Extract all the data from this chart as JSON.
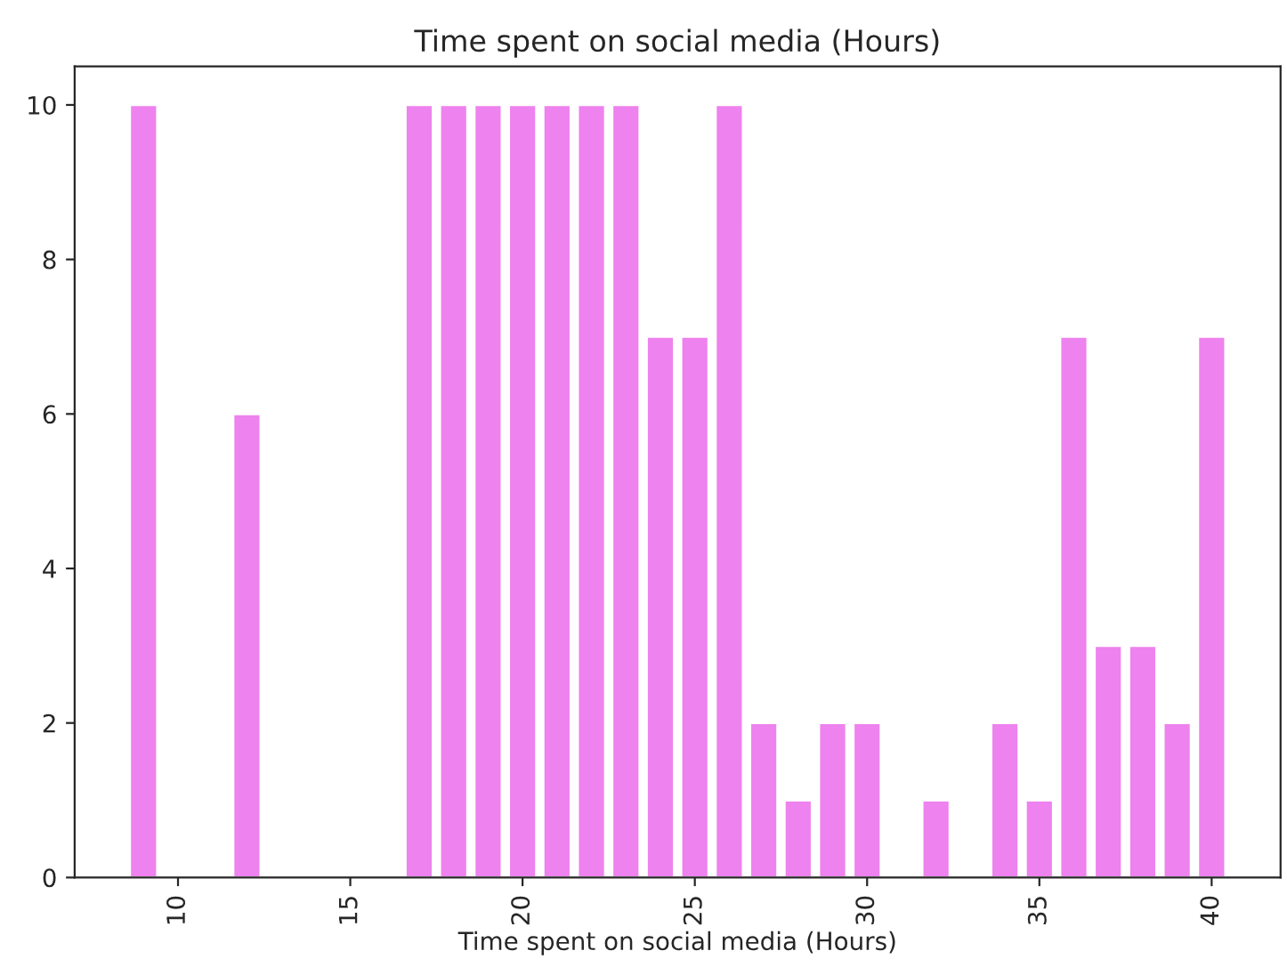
{
  "chart_data": {
    "type": "bar",
    "title": "Time spent on social media (Hours)",
    "xlabel": "Time spent on social media (Hours)",
    "x": [
      9,
      12,
      17,
      18,
      19,
      20,
      21,
      22,
      23,
      24,
      25,
      26,
      27,
      28,
      29,
      30,
      32,
      34,
      35,
      36,
      37,
      38,
      39,
      40
    ],
    "values": [
      10,
      6,
      10,
      10,
      10,
      10,
      10,
      10,
      10,
      7,
      7,
      10,
      2,
      1,
      2,
      2,
      1,
      2,
      1,
      7,
      3,
      3,
      2,
      7
    ],
    "color": "#ee82ee",
    "xlim": [
      7,
      42
    ],
    "xticks": [
      10,
      15,
      20,
      25,
      30,
      35,
      40
    ],
    "ylim": [
      0,
      10.5
    ],
    "yticks": [
      0,
      2,
      4,
      6,
      8,
      10
    ],
    "grid": false
  }
}
